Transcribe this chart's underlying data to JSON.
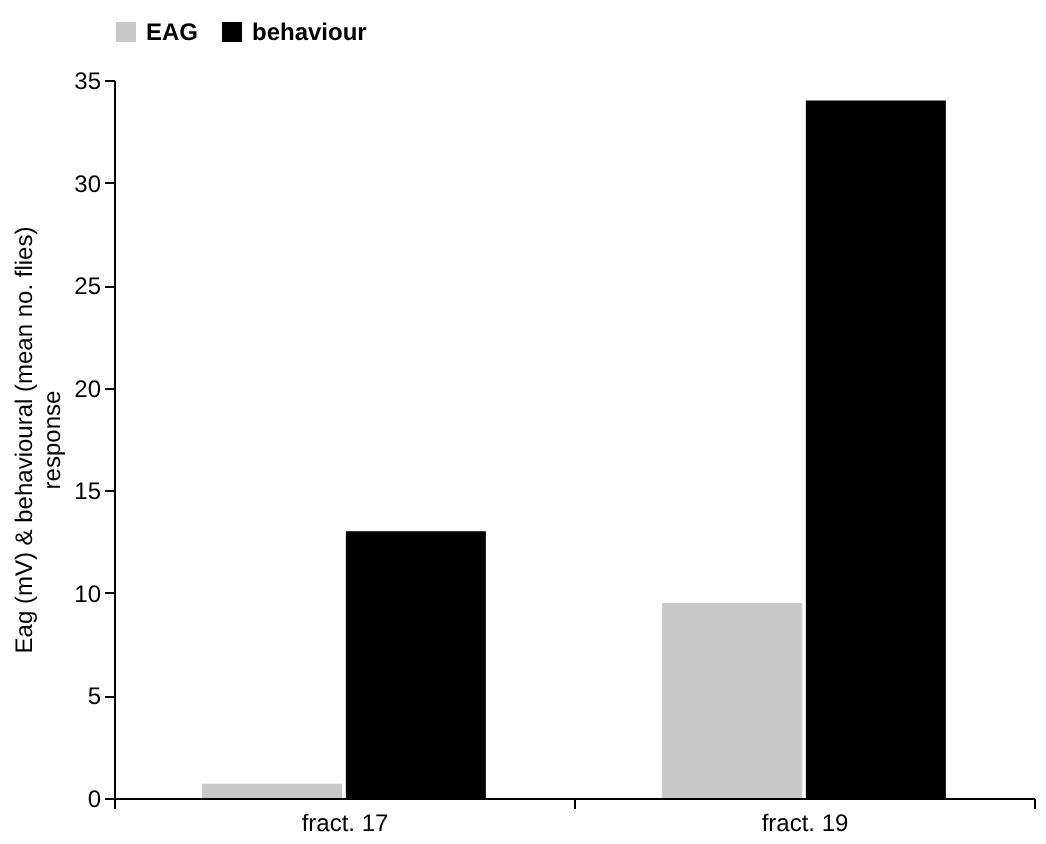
{
  "chart_data": {
    "type": "bar",
    "ylabel": "Eag (mV) & behavioural (mean no. flies)\nresponse",
    "categories": [
      "fract. 17",
      "fract. 19"
    ],
    "series": [
      {
        "name": "EAG",
        "color": "#c8c8c8",
        "values": [
          0.7,
          9.5
        ]
      },
      {
        "name": "behaviour",
        "color": "#000000",
        "values": [
          13,
          34
        ]
      }
    ],
    "ylim": [
      0,
      35
    ],
    "yticks": [
      0,
      5,
      10,
      15,
      20,
      25,
      30,
      35
    ],
    "grid": false,
    "legend": "top"
  }
}
